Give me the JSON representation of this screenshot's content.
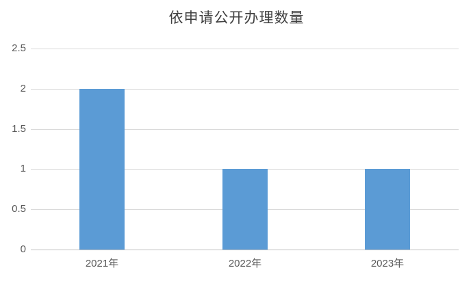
{
  "chart_data": {
    "type": "bar",
    "title": "依申请公开办理数量",
    "categories": [
      "2021年",
      "2022年",
      "2023年"
    ],
    "values": [
      2,
      1,
      1
    ],
    "series": [
      {
        "name": "依申请公开办理数量",
        "values": [
          2,
          1,
          1
        ]
      }
    ],
    "xlabel": "",
    "ylabel": "",
    "ylim": [
      0,
      2.5
    ],
    "yticks": [
      0,
      0.5,
      1,
      1.5,
      2,
      2.5
    ],
    "ytick_labels": [
      "0",
      "0.5",
      "1",
      "1.5",
      "2",
      "2.5"
    ],
    "grid": true,
    "legend": "none",
    "colors": {
      "bar": "#5B9BD5",
      "gridline": "#D9D9D9",
      "axis_line": "#BFBFBF",
      "tick_label": "#595959",
      "title": "#404040",
      "background": "#FFFFFF"
    }
  }
}
